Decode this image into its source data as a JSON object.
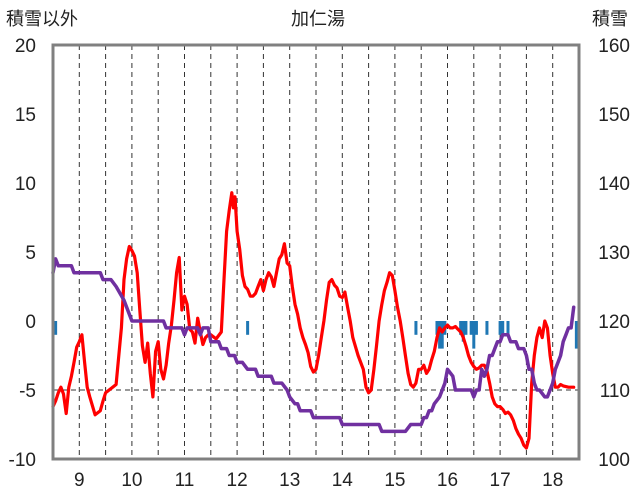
{
  "chart_data": {
    "type": "line",
    "title": "加仁湯",
    "left_axis_title": "積雪以外",
    "right_axis_title": "積雪",
    "x_ticks": [
      "9",
      "10",
      "11",
      "12",
      "13",
      "14",
      "15",
      "16",
      "17",
      "18"
    ],
    "x_range": [
      8.5,
      18.5
    ],
    "y_left_range": [
      -10,
      20
    ],
    "y_left_ticks": [
      "20",
      "15",
      "10",
      "5",
      "0",
      "-5",
      "-10"
    ],
    "y_right_range": [
      100,
      160
    ],
    "y_right_ticks": [
      "160",
      "150",
      "140",
      "130",
      "120",
      "110",
      "100"
    ],
    "grid": "dashed vertical at each day and between days; dashed horizontal at y=-5 (left axis)",
    "colors": {
      "temperature": "#ff0000",
      "snow_depth": "#7030a0",
      "precipitation": "#1f77b4",
      "axis": "#808080",
      "grid": "#333333"
    },
    "series": [
      {
        "axis": "left",
        "style": "line",
        "color": "#ff0000",
        "points": [
          [
            8.5,
            -6.2
          ],
          [
            8.55,
            -5.8
          ],
          [
            8.6,
            -5.2
          ],
          [
            8.65,
            -4.8
          ],
          [
            8.7,
            -5.3
          ],
          [
            8.75,
            -6.7
          ],
          [
            8.8,
            -4.8
          ],
          [
            8.85,
            -4.0
          ],
          [
            8.9,
            -3.0
          ],
          [
            8.95,
            -1.9
          ],
          [
            9.0,
            -1.5
          ],
          [
            9.05,
            -1.0
          ],
          [
            9.1,
            -3.0
          ],
          [
            9.15,
            -4.8
          ],
          [
            9.2,
            -5.5
          ],
          [
            9.3,
            -6.8
          ],
          [
            9.4,
            -6.5
          ],
          [
            9.45,
            -5.8
          ],
          [
            9.5,
            -5.2
          ],
          [
            9.6,
            -4.9
          ],
          [
            9.7,
            -4.6
          ],
          [
            9.8,
            -0.5
          ],
          [
            9.85,
            3.0
          ],
          [
            9.9,
            4.5
          ],
          [
            9.95,
            5.4
          ],
          [
            10.0,
            5.1
          ],
          [
            10.05,
            4.7
          ],
          [
            10.1,
            3.5
          ],
          [
            10.15,
            0.8
          ],
          [
            10.2,
            -1.8
          ],
          [
            10.25,
            -3.0
          ],
          [
            10.3,
            -1.6
          ],
          [
            10.35,
            -3.8
          ],
          [
            10.4,
            -5.5
          ],
          [
            10.45,
            -2.2
          ],
          [
            10.5,
            -1.5
          ],
          [
            10.55,
            -3.5
          ],
          [
            10.6,
            -4.2
          ],
          [
            10.65,
            -3.2
          ],
          [
            10.7,
            -1.6
          ],
          [
            10.75,
            -0.3
          ],
          [
            10.8,
            1.5
          ],
          [
            10.85,
            3.5
          ],
          [
            10.9,
            4.6
          ],
          [
            10.95,
            0.8
          ],
          [
            11.0,
            1.8
          ],
          [
            11.05,
            1.2
          ],
          [
            11.1,
            -0.6
          ],
          [
            11.15,
            -0.8
          ],
          [
            11.2,
            -1.6
          ],
          [
            11.25,
            0.2
          ],
          [
            11.3,
            -0.8
          ],
          [
            11.35,
            -1.7
          ],
          [
            11.4,
            -1.2
          ],
          [
            11.45,
            -1.0
          ],
          [
            11.5,
            -1.0
          ],
          [
            11.6,
            -1.3
          ],
          [
            11.7,
            -0.8
          ],
          [
            11.75,
            3.0
          ],
          [
            11.8,
            6.5
          ],
          [
            11.85,
            8.0
          ],
          [
            11.9,
            9.3
          ],
          [
            11.93,
            8.2
          ],
          [
            11.96,
            9.0
          ],
          [
            12.0,
            6.5
          ],
          [
            12.05,
            5.2
          ],
          [
            12.1,
            3.3
          ],
          [
            12.15,
            2.5
          ],
          [
            12.2,
            2.3
          ],
          [
            12.25,
            1.8
          ],
          [
            12.3,
            1.8
          ],
          [
            12.35,
            2.0
          ],
          [
            12.4,
            2.5
          ],
          [
            12.45,
            3.0
          ],
          [
            12.5,
            2.2
          ],
          [
            12.55,
            3.0
          ],
          [
            12.6,
            3.5
          ],
          [
            12.65,
            3.2
          ],
          [
            12.7,
            2.5
          ],
          [
            12.75,
            3.5
          ],
          [
            12.8,
            4.5
          ],
          [
            12.85,
            4.8
          ],
          [
            12.9,
            5.6
          ],
          [
            12.95,
            4.2
          ],
          [
            13.0,
            4.0
          ],
          [
            13.05,
            2.5
          ],
          [
            13.1,
            1.2
          ],
          [
            13.15,
            0.5
          ],
          [
            13.2,
            -0.5
          ],
          [
            13.25,
            -1.2
          ],
          [
            13.3,
            -1.7
          ],
          [
            13.35,
            -2.3
          ],
          [
            13.4,
            -3.3
          ],
          [
            13.45,
            -3.7
          ],
          [
            13.5,
            -3.5
          ],
          [
            13.55,
            -2.5
          ],
          [
            13.6,
            -1.2
          ],
          [
            13.65,
            0.0
          ],
          [
            13.7,
            1.5
          ],
          [
            13.75,
            2.8
          ],
          [
            13.8,
            3.0
          ],
          [
            13.85,
            2.6
          ],
          [
            13.9,
            2.4
          ],
          [
            13.95,
            1.8
          ],
          [
            14.0,
            1.7
          ],
          [
            14.05,
            2.1
          ],
          [
            14.1,
            1.0
          ],
          [
            14.15,
            0.0
          ],
          [
            14.2,
            -1.2
          ],
          [
            14.3,
            -2.5
          ],
          [
            14.4,
            -3.5
          ],
          [
            14.45,
            -4.8
          ],
          [
            14.5,
            -5.2
          ],
          [
            14.55,
            -5.0
          ],
          [
            14.6,
            -3.5
          ],
          [
            14.65,
            -1.8
          ],
          [
            14.7,
            0.0
          ],
          [
            14.75,
            1.2
          ],
          [
            14.8,
            2.2
          ],
          [
            14.85,
            2.8
          ],
          [
            14.9,
            3.5
          ],
          [
            14.95,
            3.3
          ],
          [
            15.0,
            2.2
          ],
          [
            15.05,
            1.0
          ],
          [
            15.1,
            0.0
          ],
          [
            15.15,
            -1.2
          ],
          [
            15.2,
            -2.5
          ],
          [
            15.25,
            -3.8
          ],
          [
            15.3,
            -4.6
          ],
          [
            15.35,
            -4.8
          ],
          [
            15.4,
            -4.5
          ],
          [
            15.45,
            -3.5
          ],
          [
            15.5,
            -3.5
          ],
          [
            15.55,
            -3.2
          ],
          [
            15.6,
            -3.8
          ],
          [
            15.65,
            -3.5
          ],
          [
            15.7,
            -2.8
          ],
          [
            15.75,
            -2.2
          ],
          [
            15.8,
            -1.2
          ],
          [
            15.85,
            -0.5
          ],
          [
            15.9,
            -0.8
          ],
          [
            15.95,
            -0.5
          ],
          [
            16.0,
            -0.3
          ],
          [
            16.05,
            -0.5
          ],
          [
            16.1,
            -0.5
          ],
          [
            16.15,
            -0.4
          ],
          [
            16.2,
            -0.6
          ],
          [
            16.25,
            -0.8
          ],
          [
            16.3,
            -1.2
          ],
          [
            16.35,
            -1.8
          ],
          [
            16.4,
            -2.5
          ],
          [
            16.45,
            -3.0
          ],
          [
            16.5,
            -3.3
          ],
          [
            16.55,
            -3.5
          ],
          [
            16.6,
            -3.4
          ],
          [
            16.65,
            -3.2
          ],
          [
            16.7,
            -3.2
          ],
          [
            16.75,
            -3.6
          ],
          [
            16.8,
            -4.5
          ],
          [
            16.85,
            -5.5
          ],
          [
            16.9,
            -6.0
          ],
          [
            16.95,
            -6.2
          ],
          [
            17.0,
            -6.2
          ],
          [
            17.05,
            -6.4
          ],
          [
            17.1,
            -6.7
          ],
          [
            17.15,
            -6.6
          ],
          [
            17.2,
            -6.8
          ],
          [
            17.25,
            -7.2
          ],
          [
            17.3,
            -7.8
          ],
          [
            17.35,
            -8.2
          ],
          [
            17.4,
            -8.5
          ],
          [
            17.45,
            -9.0
          ],
          [
            17.5,
            -9.2
          ],
          [
            17.55,
            -8.5
          ],
          [
            17.6,
            -4.5
          ],
          [
            17.65,
            -2.5
          ],
          [
            17.7,
            -1.2
          ],
          [
            17.75,
            -0.5
          ],
          [
            17.8,
            -1.2
          ],
          [
            17.85,
            0.0
          ],
          [
            17.9,
            -0.5
          ],
          [
            17.95,
            -2.5
          ],
          [
            18.0,
            -3.8
          ],
          [
            18.05,
            -4.8
          ],
          [
            18.1,
            -4.8
          ],
          [
            18.15,
            -4.6
          ],
          [
            18.2,
            -4.7
          ],
          [
            18.3,
            -4.8
          ],
          [
            18.4,
            -4.8
          ]
        ]
      },
      {
        "axis": "right",
        "style": "step",
        "color": "#7030a0",
        "points": [
          [
            8.5,
            127
          ],
          [
            8.55,
            129
          ],
          [
            8.6,
            128
          ],
          [
            8.85,
            128
          ],
          [
            8.9,
            127
          ],
          [
            9.4,
            127
          ],
          [
            9.45,
            126
          ],
          [
            9.6,
            126
          ],
          [
            9.7,
            125
          ],
          [
            9.85,
            123
          ],
          [
            10.0,
            120
          ],
          [
            10.6,
            120
          ],
          [
            10.65,
            119
          ],
          [
            10.95,
            119
          ],
          [
            11.0,
            118
          ],
          [
            11.05,
            119
          ],
          [
            11.25,
            119
          ],
          [
            11.3,
            118
          ],
          [
            11.35,
            119
          ],
          [
            11.45,
            119
          ],
          [
            11.5,
            117
          ],
          [
            11.65,
            117
          ],
          [
            11.7,
            116
          ],
          [
            11.8,
            116
          ],
          [
            11.85,
            115
          ],
          [
            11.95,
            115
          ],
          [
            12.0,
            114
          ],
          [
            12.1,
            114
          ],
          [
            12.2,
            113
          ],
          [
            12.35,
            113
          ],
          [
            12.4,
            112
          ],
          [
            12.65,
            112
          ],
          [
            12.7,
            111
          ],
          [
            12.85,
            111
          ],
          [
            12.95,
            110
          ],
          [
            13.0,
            109
          ],
          [
            13.1,
            108
          ],
          [
            13.15,
            108
          ],
          [
            13.2,
            107
          ],
          [
            13.4,
            107
          ],
          [
            13.45,
            106
          ],
          [
            13.75,
            106
          ],
          [
            13.8,
            106
          ],
          [
            13.95,
            106
          ],
          [
            14.0,
            105
          ],
          [
            14.7,
            105
          ],
          [
            14.75,
            104
          ],
          [
            15.0,
            104
          ],
          [
            15.2,
            104
          ],
          [
            15.3,
            105
          ],
          [
            15.5,
            105
          ],
          [
            15.55,
            106
          ],
          [
            15.6,
            106
          ],
          [
            15.65,
            107
          ],
          [
            15.7,
            107
          ],
          [
            15.75,
            108
          ],
          [
            15.85,
            109
          ],
          [
            15.95,
            111
          ],
          [
            16.0,
            113
          ],
          [
            16.1,
            112
          ],
          [
            16.15,
            110
          ],
          [
            16.45,
            110
          ],
          [
            16.5,
            109
          ],
          [
            16.55,
            110
          ],
          [
            16.6,
            110
          ],
          [
            16.65,
            113
          ],
          [
            16.7,
            112
          ],
          [
            16.75,
            113
          ],
          [
            16.8,
            115
          ],
          [
            16.85,
            115
          ],
          [
            16.9,
            116
          ],
          [
            16.95,
            117
          ],
          [
            17.0,
            117
          ],
          [
            17.05,
            118
          ],
          [
            17.15,
            118
          ],
          [
            17.2,
            117
          ],
          [
            17.3,
            117
          ],
          [
            17.35,
            116
          ],
          [
            17.45,
            116
          ],
          [
            17.5,
            115
          ],
          [
            17.55,
            113
          ],
          [
            17.6,
            113
          ],
          [
            17.65,
            111
          ],
          [
            17.7,
            110
          ],
          [
            17.75,
            110
          ],
          [
            17.85,
            109
          ],
          [
            17.9,
            109
          ],
          [
            17.95,
            110
          ],
          [
            18.0,
            111
          ],
          [
            18.05,
            113
          ],
          [
            18.1,
            114
          ],
          [
            18.15,
            115
          ],
          [
            18.2,
            117
          ],
          [
            18.25,
            118
          ],
          [
            18.3,
            119
          ],
          [
            18.35,
            119
          ],
          [
            18.4,
            122
          ]
        ]
      },
      {
        "axis": "left",
        "style": "bars",
        "color": "#1f77b4",
        "points": [
          [
            8.55,
            -1.0
          ],
          [
            12.2,
            -1.0
          ],
          [
            15.4,
            -1.0
          ],
          [
            15.8,
            -1.0
          ],
          [
            15.85,
            -2.0
          ],
          [
            15.9,
            -2.0
          ],
          [
            15.95,
            -1.0
          ],
          [
            16.25,
            -1.0
          ],
          [
            16.3,
            -1.5
          ],
          [
            16.35,
            -1.0
          ],
          [
            16.45,
            -1.0
          ],
          [
            16.5,
            -2.0
          ],
          [
            16.55,
            -1.0
          ],
          [
            16.75,
            -1.0
          ],
          [
            17.0,
            -1.0
          ],
          [
            17.05,
            -1.0
          ],
          [
            17.15,
            -1.0
          ],
          [
            18.45,
            -2.0
          ]
        ]
      }
    ]
  }
}
